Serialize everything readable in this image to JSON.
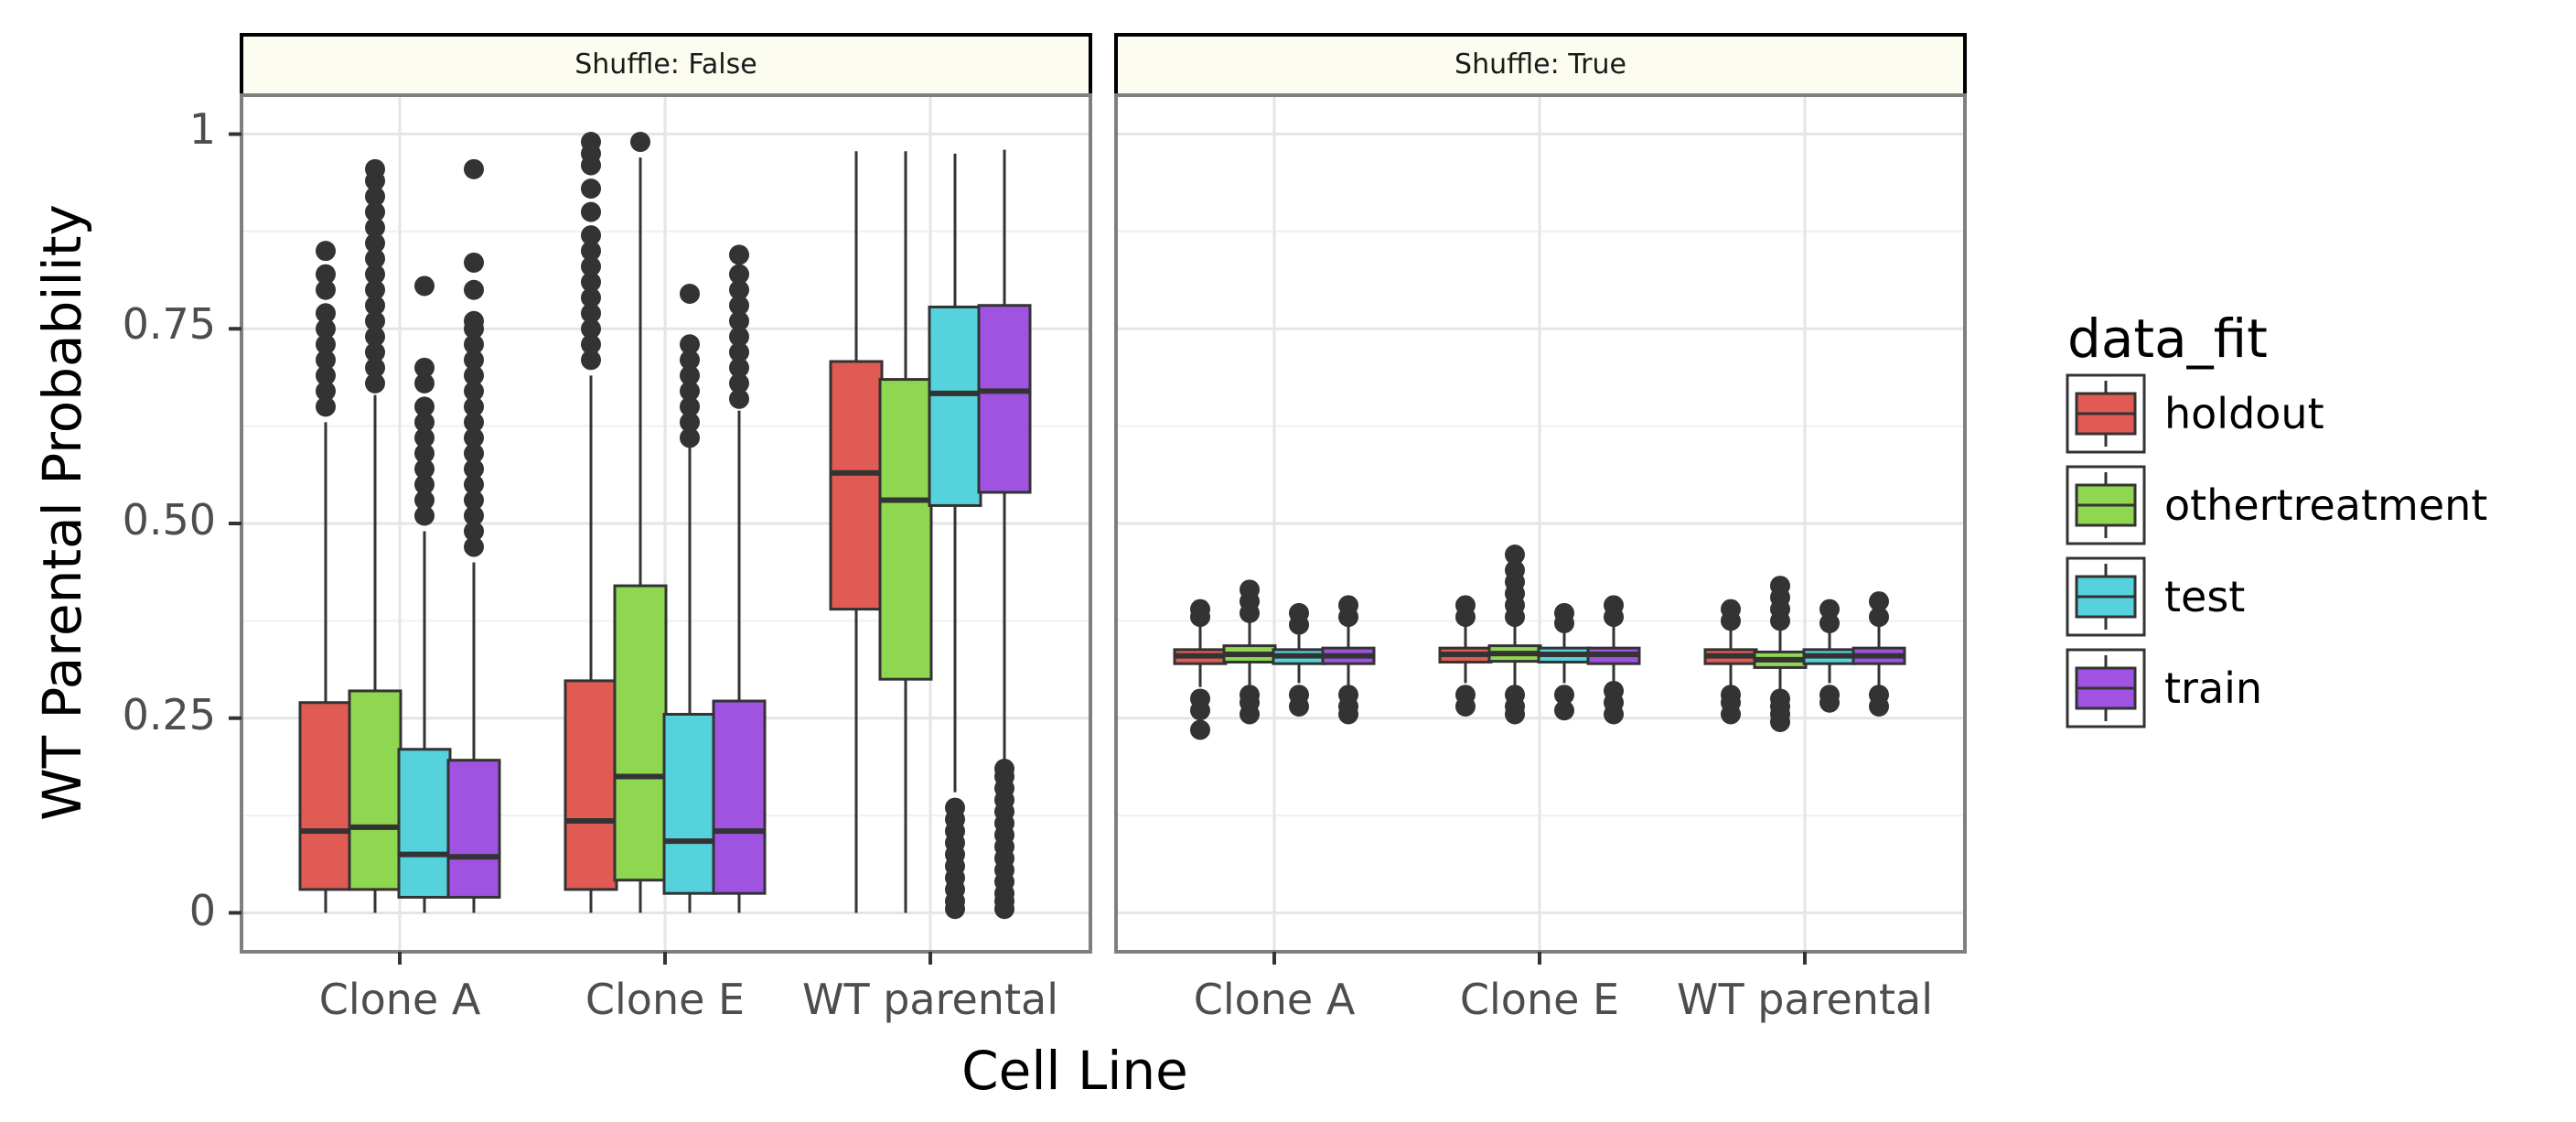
{
  "chart_data": {
    "type": "box",
    "xlabel": "Cell Line",
    "ylabel": "WT Parental Probability",
    "ylim": [
      -0.05,
      1.05
    ],
    "yticks": [
      0,
      0.25,
      0.5,
      0.75,
      1
    ],
    "ytick_labels": [
      "0",
      "0.25",
      "0.50",
      "0.75",
      "1"
    ],
    "categories": [
      "Clone A",
      "Clone E",
      "WT parental"
    ],
    "grid": true,
    "legend": {
      "title": "data_fit",
      "position": "right",
      "entries": [
        {
          "name": "holdout",
          "color": "#e05b53"
        },
        {
          "name": "othertreatment",
          "color": "#8fd651"
        },
        {
          "name": "test",
          "color": "#55d2dc"
        },
        {
          "name": "train",
          "color": "#a052e0"
        }
      ]
    },
    "facets": [
      {
        "label": "Shuffle: False",
        "groups": [
          {
            "category": "Clone A",
            "boxes": [
              {
                "series": "holdout",
                "min": 0.0,
                "q1": 0.03,
                "median": 0.105,
                "q3": 0.27,
                "max": 0.63,
                "outliers": [
                  0.65,
                  0.67,
                  0.69,
                  0.71,
                  0.73,
                  0.75,
                  0.77,
                  0.8,
                  0.82,
                  0.85
                ]
              },
              {
                "series": "othertreatment",
                "min": 0.0,
                "q1": 0.03,
                "median": 0.11,
                "q3": 0.285,
                "max": 0.665,
                "outliers": [
                  0.68,
                  0.7,
                  0.72,
                  0.74,
                  0.76,
                  0.78,
                  0.8,
                  0.82,
                  0.84,
                  0.86,
                  0.88,
                  0.9,
                  0.92,
                  0.94,
                  0.955
                ]
              },
              {
                "series": "test",
                "min": 0.0,
                "q1": 0.02,
                "median": 0.075,
                "q3": 0.21,
                "max": 0.49,
                "outliers": [
                  0.51,
                  0.53,
                  0.55,
                  0.57,
                  0.59,
                  0.61,
                  0.63,
                  0.65,
                  0.68,
                  0.7,
                  0.805
                ]
              },
              {
                "series": "train",
                "min": 0.0,
                "q1": 0.02,
                "median": 0.072,
                "q3": 0.196,
                "max": 0.45,
                "outliers": [
                  0.47,
                  0.49,
                  0.51,
                  0.53,
                  0.55,
                  0.57,
                  0.59,
                  0.61,
                  0.63,
                  0.65,
                  0.67,
                  0.69,
                  0.71,
                  0.73,
                  0.75,
                  0.76,
                  0.8,
                  0.835,
                  0.955
                ]
              }
            ]
          },
          {
            "category": "Clone E",
            "boxes": [
              {
                "series": "holdout",
                "min": 0.0,
                "q1": 0.03,
                "median": 0.118,
                "q3": 0.298,
                "max": 0.69,
                "outliers": [
                  0.71,
                  0.73,
                  0.75,
                  0.77,
                  0.79,
                  0.81,
                  0.83,
                  0.85,
                  0.87,
                  0.9,
                  0.93,
                  0.96,
                  0.975,
                  0.99
                ]
              },
              {
                "series": "othertreatment",
                "min": 0.0,
                "q1": 0.042,
                "median": 0.175,
                "q3": 0.42,
                "max": 0.97,
                "outliers": [
                  0.99
                ]
              },
              {
                "series": "test",
                "min": 0.0,
                "q1": 0.025,
                "median": 0.092,
                "q3": 0.255,
                "max": 0.6,
                "outliers": [
                  0.61,
                  0.63,
                  0.65,
                  0.67,
                  0.69,
                  0.71,
                  0.73,
                  0.795
                ]
              },
              {
                "series": "train",
                "min": 0.0,
                "q1": 0.025,
                "median": 0.105,
                "q3": 0.272,
                "max": 0.645,
                "outliers": [
                  0.66,
                  0.68,
                  0.7,
                  0.72,
                  0.74,
                  0.76,
                  0.78,
                  0.8,
                  0.82,
                  0.845
                ]
              }
            ]
          },
          {
            "category": "WT parental",
            "boxes": [
              {
                "series": "holdout",
                "min": 0.0,
                "q1": 0.39,
                "median": 0.565,
                "q3": 0.708,
                "max": 0.978,
                "outliers": []
              },
              {
                "series": "othertreatment",
                "min": 0.0,
                "q1": 0.3,
                "median": 0.53,
                "q3": 0.685,
                "max": 0.978,
                "outliers": []
              },
              {
                "series": "test",
                "min": 0.155,
                "q1": 0.523,
                "median": 0.667,
                "q3": 0.778,
                "max": 0.975,
                "outliers": [
                  0.005,
                  0.015,
                  0.03,
                  0.045,
                  0.06,
                  0.075,
                  0.09,
                  0.105,
                  0.12,
                  0.135
                ]
              },
              {
                "series": "train",
                "min": 0.19,
                "q1": 0.54,
                "median": 0.67,
                "q3": 0.78,
                "max": 0.98,
                "outliers": [
                  0.005,
                  0.015,
                  0.025,
                  0.04,
                  0.055,
                  0.07,
                  0.085,
                  0.1,
                  0.115,
                  0.13,
                  0.145,
                  0.16,
                  0.175,
                  0.185
                ]
              }
            ]
          }
        ]
      },
      {
        "label": "Shuffle: True",
        "groups": [
          {
            "category": "Clone A",
            "boxes": [
              {
                "series": "holdout",
                "min": 0.29,
                "q1": 0.32,
                "median": 0.33,
                "q3": 0.338,
                "max": 0.37,
                "outliers": [
                  0.235,
                  0.26,
                  0.275,
                  0.38,
                  0.39
                ]
              },
              {
                "series": "othertreatment",
                "min": 0.29,
                "q1": 0.322,
                "median": 0.332,
                "q3": 0.343,
                "max": 0.375,
                "outliers": [
                  0.255,
                  0.27,
                  0.28,
                  0.385,
                  0.4,
                  0.415
                ]
              },
              {
                "series": "test",
                "min": 0.295,
                "q1": 0.32,
                "median": 0.33,
                "q3": 0.338,
                "max": 0.365,
                "outliers": [
                  0.265,
                  0.28,
                  0.37,
                  0.385
                ]
              },
              {
                "series": "train",
                "min": 0.29,
                "q1": 0.32,
                "median": 0.33,
                "q3": 0.34,
                "max": 0.37,
                "outliers": [
                  0.255,
                  0.265,
                  0.28,
                  0.38,
                  0.395
                ]
              }
            ]
          },
          {
            "category": "Clone E",
            "boxes": [
              {
                "series": "holdout",
                "min": 0.295,
                "q1": 0.322,
                "median": 0.332,
                "q3": 0.34,
                "max": 0.37,
                "outliers": [
                  0.265,
                  0.28,
                  0.38,
                  0.395
                ]
              },
              {
                "series": "othertreatment",
                "min": 0.29,
                "q1": 0.323,
                "median": 0.333,
                "q3": 0.343,
                "max": 0.37,
                "outliers": [
                  0.255,
                  0.265,
                  0.28,
                  0.38,
                  0.395,
                  0.41,
                  0.425,
                  0.44,
                  0.46
                ]
              },
              {
                "series": "test",
                "min": 0.295,
                "q1": 0.322,
                "median": 0.332,
                "q3": 0.34,
                "max": 0.365,
                "outliers": [
                  0.26,
                  0.28,
                  0.372,
                  0.385
                ]
              },
              {
                "series": "train",
                "min": 0.29,
                "q1": 0.32,
                "median": 0.332,
                "q3": 0.34,
                "max": 0.37,
                "outliers": [
                  0.255,
                  0.27,
                  0.285,
                  0.38,
                  0.395
                ]
              }
            ]
          },
          {
            "category": "WT parental",
            "boxes": [
              {
                "series": "holdout",
                "min": 0.29,
                "q1": 0.32,
                "median": 0.33,
                "q3": 0.338,
                "max": 0.368,
                "outliers": [
                  0.255,
                  0.27,
                  0.28,
                  0.375,
                  0.39
                ]
              },
              {
                "series": "othertreatment",
                "min": 0.285,
                "q1": 0.315,
                "median": 0.325,
                "q3": 0.335,
                "max": 0.365,
                "outliers": [
                  0.245,
                  0.255,
                  0.265,
                  0.275,
                  0.375,
                  0.39,
                  0.405,
                  0.42
                ]
              },
              {
                "series": "test",
                "min": 0.295,
                "q1": 0.32,
                "median": 0.33,
                "q3": 0.338,
                "max": 0.365,
                "outliers": [
                  0.27,
                  0.28,
                  0.372,
                  0.39
                ]
              },
              {
                "series": "train",
                "min": 0.29,
                "q1": 0.32,
                "median": 0.33,
                "q3": 0.34,
                "max": 0.37,
                "outliers": [
                  0.265,
                  0.28,
                  0.38,
                  0.4
                ]
              }
            ]
          }
        ]
      }
    ]
  }
}
